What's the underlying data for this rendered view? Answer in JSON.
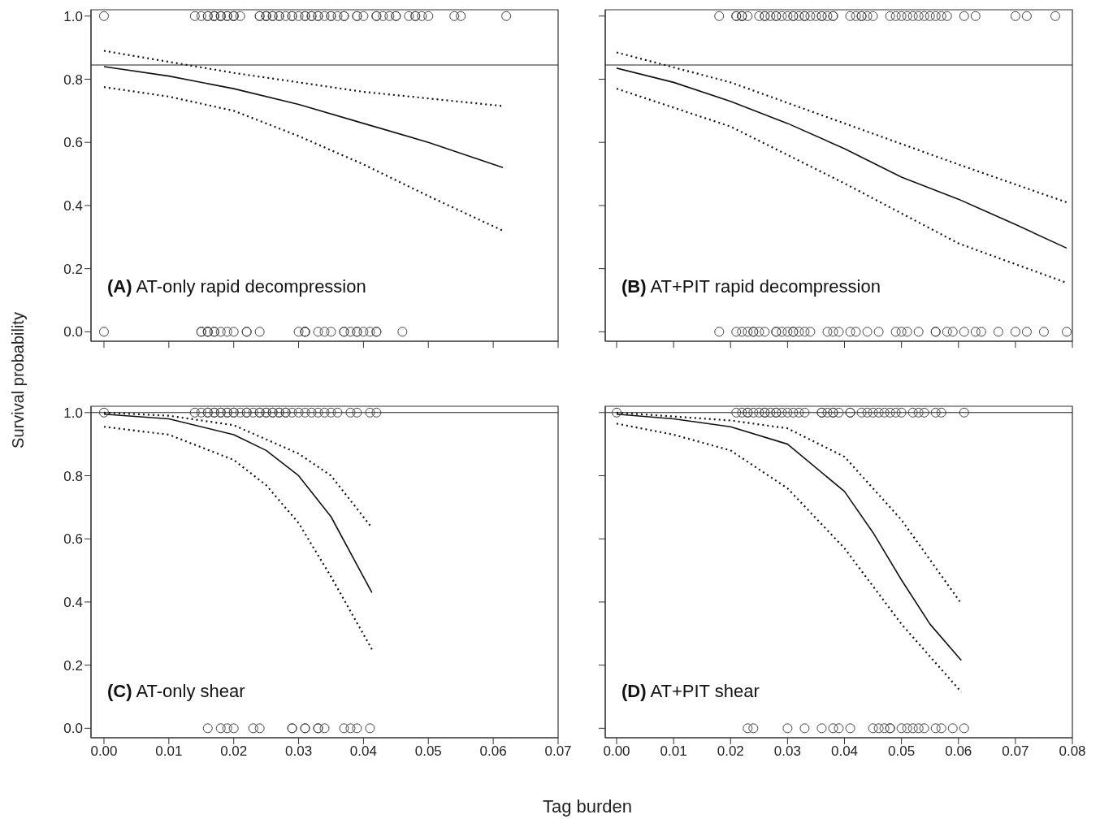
{
  "chart_data": [
    {
      "type": "line",
      "ylabel": "Survival probability",
      "annotations": [
        "(A) AT-only rapid decompression"
      ],
      "xlim": [
        -0.002,
        0.07
      ],
      "ylim": [
        -0.03,
        1.02
      ],
      "xticks": [
        {
          "value": 0,
          "label": null
        },
        {
          "value": 0.01,
          "label": null
        },
        {
          "value": 0.02,
          "label": null
        },
        {
          "value": 0.03,
          "label": null
        },
        {
          "value": 0.04,
          "label": null
        },
        {
          "value": 0.05,
          "label": null
        },
        {
          "value": 0.06,
          "label": null
        },
        {
          "value": 0.07,
          "label": null
        }
      ],
      "yticks": [
        {
          "value": 0,
          "label": "0.0"
        },
        {
          "value": 0.2,
          "label": "0.2"
        },
        {
          "value": 0.4,
          "label": "0.4"
        },
        {
          "value": 0.6,
          "label": "0.6"
        },
        {
          "value": 0.8,
          "label": "0.8"
        },
        {
          "value": 1,
          "label": "1.0"
        }
      ],
      "tick_labels": "y",
      "grid": false,
      "legend": false,
      "ref_lines": [
        {
          "axis": "y",
          "value": 0.845,
          "color": "#222222"
        }
      ],
      "series": [
        {
          "type": "scatter",
          "marker": "circle",
          "color": "#444444",
          "x": [
            0,
            0.014,
            0.015,
            0.016,
            0.016,
            0.017,
            0.017,
            0.017,
            0.018,
            0.018,
            0.018,
            0.019,
            0.019,
            0.02,
            0.02,
            0.02,
            0.021,
            0.024,
            0.024,
            0.025,
            0.025,
            0.025,
            0.026,
            0.026,
            0.027,
            0.027,
            0.028,
            0.029,
            0.029,
            0.03,
            0.031,
            0.031,
            0.032,
            0.032,
            0.033,
            0.033,
            0.034,
            0.035,
            0.035,
            0.036,
            0.037,
            0.037,
            0.039,
            0.039,
            0.04,
            0.042,
            0.042,
            0.043,
            0.044,
            0.045,
            0.045,
            0.047,
            0.048,
            0.048,
            0.049,
            0.05,
            0.054,
            0.055,
            0.062,
            0,
            0.015,
            0.015,
            0.016,
            0.016,
            0.016,
            0.017,
            0.017,
            0.018,
            0.019,
            0.02,
            0.022,
            0.022,
            0.024,
            0.03,
            0.031,
            0.031,
            0.031,
            0.033,
            0.034,
            0.035,
            0.037,
            0.037,
            0.038,
            0.039,
            0.039,
            0.04,
            0.041,
            0.042,
            0.042,
            0.046
          ],
          "values": [
            1,
            1,
            1,
            1,
            1,
            1,
            1,
            1,
            1,
            1,
            1,
            1,
            1,
            1,
            1,
            1,
            1,
            1,
            1,
            1,
            1,
            1,
            1,
            1,
            1,
            1,
            1,
            1,
            1,
            1,
            1,
            1,
            1,
            1,
            1,
            1,
            1,
            1,
            1,
            1,
            1,
            1,
            1,
            1,
            1,
            1,
            1,
            1,
            1,
            1,
            1,
            1,
            1,
            1,
            1,
            1,
            1,
            1,
            1,
            0,
            0,
            0,
            0,
            0,
            0,
            0,
            0,
            0,
            0,
            0,
            0,
            0,
            0,
            0,
            0,
            0,
            0,
            0,
            0,
            0,
            0,
            0,
            0,
            0,
            0,
            0,
            0,
            0,
            0,
            0
          ]
        },
        {
          "type": "line",
          "marker": "none",
          "color": "#111111",
          "line_style": "solid",
          "x": [
            0,
            0.01,
            0.02,
            0.03,
            0.04,
            0.05,
            0.0615
          ],
          "values": [
            0.84,
            0.81,
            0.77,
            0.72,
            0.66,
            0.6,
            0.52
          ]
        },
        {
          "type": "line",
          "marker": "none",
          "color": "#111111",
          "line_style": "dotted",
          "x": [
            0,
            0.02,
            0.04,
            0.0615
          ],
          "values": [
            0.89,
            0.82,
            0.76,
            0.715
          ]
        },
        {
          "type": "line",
          "marker": "none",
          "color": "#111111",
          "line_style": "dotted",
          "x": [
            0,
            0.01,
            0.02,
            0.03,
            0.04,
            0.05,
            0.0615
          ],
          "values": [
            0.775,
            0.745,
            0.7,
            0.62,
            0.53,
            0.43,
            0.32
          ]
        }
      ]
    },
    {
      "type": "line",
      "annotations": [
        "(B) AT+PIT rapid decompression"
      ],
      "xlim": [
        -0.002,
        0.08
      ],
      "ylim": [
        -0.03,
        1.02
      ],
      "xticks": [
        {
          "value": 0,
          "label": null
        },
        {
          "value": 0.01,
          "label": null
        },
        {
          "value": 0.02,
          "label": null
        },
        {
          "value": 0.03,
          "label": null
        },
        {
          "value": 0.04,
          "label": null
        },
        {
          "value": 0.05,
          "label": null
        },
        {
          "value": 0.06,
          "label": null
        },
        {
          "value": 0.07,
          "label": null
        },
        {
          "value": 0.08,
          "label": null
        }
      ],
      "yticks": [
        {
          "value": 0,
          "label": null
        },
        {
          "value": 0.2,
          "label": null
        },
        {
          "value": 0.4,
          "label": null
        },
        {
          "value": 0.6,
          "label": null
        },
        {
          "value": 0.8,
          "label": null
        },
        {
          "value": 1,
          "label": null
        }
      ],
      "tick_labels": false,
      "grid": false,
      "legend": false,
      "ref_lines": [
        {
          "axis": "y",
          "value": 0.845,
          "color": "#222222"
        }
      ],
      "series": [
        {
          "type": "scatter",
          "marker": "circle",
          "color": "#444444",
          "x": [
            0.018,
            0.021,
            0.021,
            0.022,
            0.022,
            0.022,
            0.023,
            0.025,
            0.026,
            0.026,
            0.027,
            0.028,
            0.028,
            0.029,
            0.03,
            0.031,
            0.031,
            0.032,
            0.033,
            0.033,
            0.034,
            0.035,
            0.036,
            0.036,
            0.037,
            0.038,
            0.038,
            0.041,
            0.042,
            0.043,
            0.043,
            0.044,
            0.045,
            0.048,
            0.049,
            0.05,
            0.051,
            0.052,
            0.053,
            0.054,
            0.055,
            0.056,
            0.057,
            0.058,
            0.061,
            0.063,
            0.07,
            0.072,
            0.077,
            0.018,
            0.021,
            0.022,
            0.023,
            0.024,
            0.024,
            0.025,
            0.026,
            0.028,
            0.028,
            0.029,
            0.03,
            0.031,
            0.031,
            0.032,
            0.033,
            0.034,
            0.037,
            0.038,
            0.039,
            0.041,
            0.042,
            0.044,
            0.046,
            0.049,
            0.05,
            0.051,
            0.053,
            0.056,
            0.056,
            0.058,
            0.059,
            0.061,
            0.063,
            0.064,
            0.067,
            0.07,
            0.072,
            0.075,
            0.079
          ],
          "values": [
            1,
            1,
            1,
            1,
            1,
            1,
            1,
            1,
            1,
            1,
            1,
            1,
            1,
            1,
            1,
            1,
            1,
            1,
            1,
            1,
            1,
            1,
            1,
            1,
            1,
            1,
            1,
            1,
            1,
            1,
            1,
            1,
            1,
            1,
            1,
            1,
            1,
            1,
            1,
            1,
            1,
            1,
            1,
            1,
            1,
            1,
            1,
            1,
            1,
            0,
            0,
            0,
            0,
            0,
            0,
            0,
            0,
            0,
            0,
            0,
            0,
            0,
            0,
            0,
            0,
            0,
            0,
            0,
            0,
            0,
            0,
            0,
            0,
            0,
            0,
            0,
            0,
            0,
            0,
            0,
            0,
            0,
            0,
            0,
            0,
            0,
            0,
            0,
            0
          ]
        },
        {
          "type": "line",
          "marker": "none",
          "color": "#111111",
          "line_style": "solid",
          "x": [
            0,
            0.01,
            0.02,
            0.03,
            0.04,
            0.05,
            0.06,
            0.07,
            0.079
          ],
          "values": [
            0.835,
            0.79,
            0.73,
            0.66,
            0.58,
            0.49,
            0.42,
            0.34,
            0.265
          ]
        },
        {
          "type": "line",
          "marker": "none",
          "color": "#111111",
          "line_style": "dotted",
          "x": [
            0,
            0.02,
            0.04,
            0.06,
            0.079
          ],
          "values": [
            0.885,
            0.79,
            0.66,
            0.53,
            0.41
          ]
        },
        {
          "type": "line",
          "marker": "none",
          "color": "#111111",
          "line_style": "dotted",
          "x": [
            0,
            0.02,
            0.04,
            0.06,
            0.079
          ],
          "values": [
            0.77,
            0.65,
            0.47,
            0.28,
            0.155
          ]
        }
      ]
    },
    {
      "type": "line",
      "xlabel": "Tag burden",
      "grid": false,
      "legend": false,
      "annotations": [
        "(C) AT-only shear"
      ],
      "xlim": [
        -0.002,
        0.07
      ],
      "ylim": [
        -0.03,
        1.02
      ],
      "xticks": [
        {
          "value": 0,
          "label": "0.00"
        },
        {
          "value": 0.01,
          "label": "0.01"
        },
        {
          "value": 0.02,
          "label": "0.02"
        },
        {
          "value": 0.03,
          "label": "0.03"
        },
        {
          "value": 0.04,
          "label": "0.04"
        },
        {
          "value": 0.05,
          "label": "0.05"
        },
        {
          "value": 0.06,
          "label": "0.06"
        },
        {
          "value": 0.07,
          "label": "0.07"
        }
      ],
      "yticks": [
        {
          "value": 0,
          "label": "0.0"
        },
        {
          "value": 0.2,
          "label": "0.2"
        },
        {
          "value": 0.4,
          "label": "0.4"
        },
        {
          "value": 0.6,
          "label": "0.6"
        },
        {
          "value": 0.8,
          "label": "0.8"
        },
        {
          "value": 1,
          "label": "1.0"
        }
      ],
      "ref_lines": [
        {
          "axis": "y",
          "value": 1,
          "color": "#222222"
        }
      ],
      "series": [
        {
          "type": "scatter",
          "marker": "circle",
          "color": "#444444",
          "x": [
            0,
            0.014,
            0.015,
            0.016,
            0.016,
            0.017,
            0.017,
            0.018,
            0.018,
            0.019,
            0.019,
            0.02,
            0.02,
            0.021,
            0.022,
            0.022,
            0.023,
            0.024,
            0.024,
            0.025,
            0.025,
            0.026,
            0.026,
            0.027,
            0.027,
            0.028,
            0.028,
            0.029,
            0.03,
            0.031,
            0.032,
            0.033,
            0.034,
            0.035,
            0.036,
            0.038,
            0.039,
            0.041,
            0.042,
            0.016,
            0.018,
            0.019,
            0.02,
            0.023,
            0.024,
            0.029,
            0.029,
            0.031,
            0.031,
            0.033,
            0.033,
            0.034,
            0.037,
            0.038,
            0.039,
            0.041
          ],
          "values": [
            1,
            1,
            1,
            1,
            1,
            1,
            1,
            1,
            1,
            1,
            1,
            1,
            1,
            1,
            1,
            1,
            1,
            1,
            1,
            1,
            1,
            1,
            1,
            1,
            1,
            1,
            1,
            1,
            1,
            1,
            1,
            1,
            1,
            1,
            1,
            1,
            1,
            1,
            1,
            0,
            0,
            0,
            0,
            0,
            0,
            0,
            0,
            0,
            0,
            0,
            0,
            0,
            0,
            0,
            0,
            0
          ]
        },
        {
          "type": "line",
          "marker": "none",
          "color": "#111111",
          "line_style": "solid",
          "x": [
            0,
            0.01,
            0.02,
            0.025,
            0.03,
            0.035,
            0.0413
          ],
          "values": [
            0.995,
            0.98,
            0.93,
            0.88,
            0.8,
            0.67,
            0.43
          ]
        },
        {
          "type": "line",
          "marker": "none",
          "color": "#111111",
          "line_style": "dotted",
          "x": [
            0,
            0.01,
            0.02,
            0.03,
            0.035,
            0.0413
          ],
          "values": [
            1,
            0.99,
            0.96,
            0.87,
            0.8,
            0.635
          ]
        },
        {
          "type": "line",
          "marker": "none",
          "color": "#111111",
          "line_style": "dotted",
          "x": [
            0,
            0.01,
            0.02,
            0.025,
            0.03,
            0.035,
            0.0413
          ],
          "values": [
            0.955,
            0.93,
            0.85,
            0.77,
            0.65,
            0.48,
            0.25
          ]
        }
      ]
    },
    {
      "type": "line",
      "annotations": [
        "(D) AT+PIT shear"
      ],
      "xlim": [
        -0.002,
        0.08
      ],
      "ylim": [
        -0.03,
        1.02
      ],
      "xticks": [
        {
          "value": 0,
          "label": "0.00"
        },
        {
          "value": 0.01,
          "label": "0.01"
        },
        {
          "value": 0.02,
          "label": "0.02"
        },
        {
          "value": 0.03,
          "label": "0.03"
        },
        {
          "value": 0.04,
          "label": "0.04"
        },
        {
          "value": 0.05,
          "label": "0.05"
        },
        {
          "value": 0.06,
          "label": "0.06"
        },
        {
          "value": 0.07,
          "label": "0.07"
        },
        {
          "value": 0.08,
          "label": "0.08"
        }
      ],
      "yticks": [
        {
          "value": 0,
          "label": null
        },
        {
          "value": 0.2,
          "label": null
        },
        {
          "value": 0.4,
          "label": null
        },
        {
          "value": 0.6,
          "label": null
        },
        {
          "value": 0.8,
          "label": null
        },
        {
          "value": 1,
          "label": null
        }
      ],
      "tick_labels": "x",
      "grid": false,
      "legend": false,
      "ref_lines": [
        {
          "axis": "y",
          "value": 1,
          "color": "#222222"
        }
      ],
      "series": [
        {
          "type": "scatter",
          "marker": "circle",
          "color": "#444444",
          "x": [
            0,
            0.021,
            0.022,
            0.023,
            0.023,
            0.024,
            0.025,
            0.026,
            0.026,
            0.027,
            0.028,
            0.028,
            0.029,
            0.03,
            0.031,
            0.032,
            0.033,
            0.036,
            0.036,
            0.037,
            0.038,
            0.038,
            0.039,
            0.041,
            0.041,
            0.043,
            0.044,
            0.045,
            0.046,
            0.047,
            0.048,
            0.049,
            0.05,
            0.052,
            0.053,
            0.054,
            0.056,
            0.057,
            0.061,
            0.023,
            0.024,
            0.03,
            0.033,
            0.036,
            0.038,
            0.039,
            0.041,
            0.045,
            0.046,
            0.047,
            0.048,
            0.048,
            0.05,
            0.051,
            0.052,
            0.053,
            0.054,
            0.056,
            0.057,
            0.059,
            0.061
          ],
          "values": [
            1,
            1,
            1,
            1,
            1,
            1,
            1,
            1,
            1,
            1,
            1,
            1,
            1,
            1,
            1,
            1,
            1,
            1,
            1,
            1,
            1,
            1,
            1,
            1,
            1,
            1,
            1,
            1,
            1,
            1,
            1,
            1,
            1,
            1,
            1,
            1,
            1,
            1,
            1,
            0,
            0,
            0,
            0,
            0,
            0,
            0,
            0,
            0,
            0,
            0,
            0,
            0,
            0,
            0,
            0,
            0,
            0,
            0,
            0,
            0,
            0
          ]
        },
        {
          "type": "line",
          "marker": "none",
          "color": "#111111",
          "line_style": "solid",
          "x": [
            0,
            0.01,
            0.02,
            0.03,
            0.04,
            0.045,
            0.05,
            0.055,
            0.0605
          ],
          "values": [
            0.995,
            0.98,
            0.955,
            0.9,
            0.75,
            0.62,
            0.47,
            0.33,
            0.215
          ]
        },
        {
          "type": "line",
          "marker": "none",
          "color": "#111111",
          "line_style": "dotted",
          "x": [
            0,
            0.02,
            0.03,
            0.04,
            0.05,
            0.0605
          ],
          "values": [
            1,
            0.975,
            0.95,
            0.86,
            0.66,
            0.395
          ]
        },
        {
          "type": "line",
          "marker": "none",
          "color": "#111111",
          "line_style": "dotted",
          "x": [
            0,
            0.01,
            0.02,
            0.03,
            0.04,
            0.05,
            0.0605
          ],
          "values": [
            0.965,
            0.93,
            0.88,
            0.76,
            0.57,
            0.33,
            0.115
          ]
        }
      ]
    }
  ]
}
